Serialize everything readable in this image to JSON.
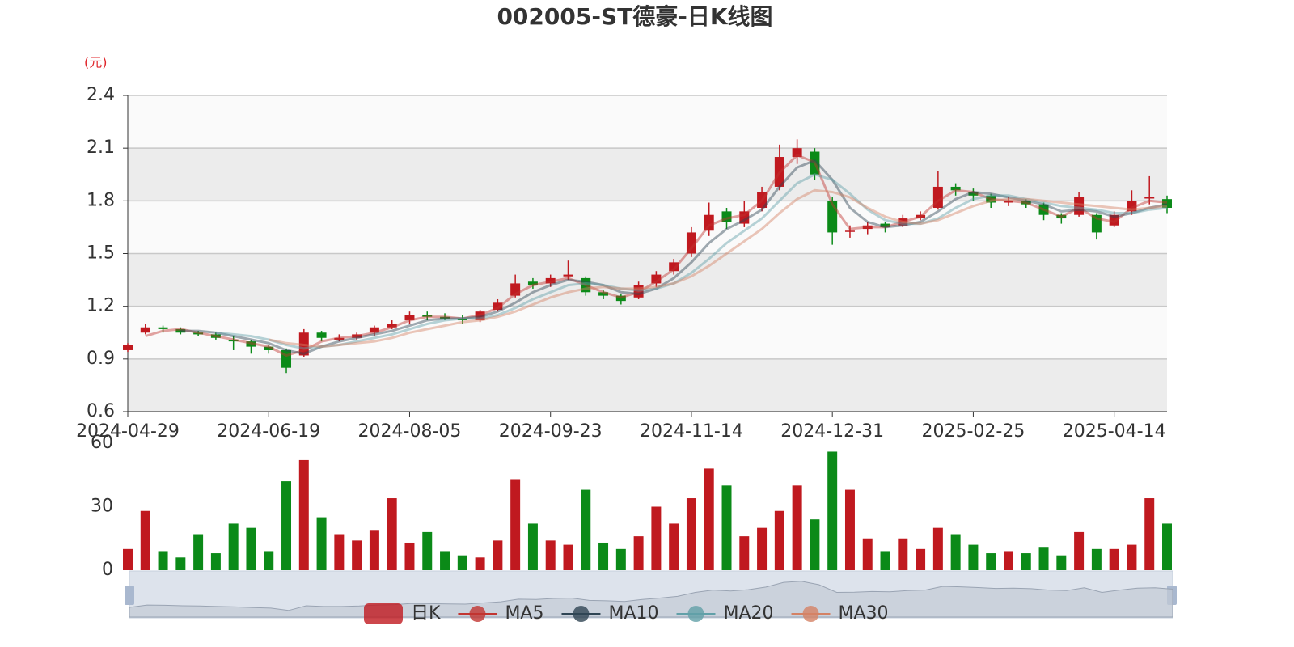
{
  "chart_data": {
    "type": "candlestick",
    "title": "002005-ST德豪-日K线图",
    "y_label": "(元)",
    "ylim": [
      0.6,
      2.4
    ],
    "yticks": [
      0.6,
      0.9,
      1.2,
      1.5,
      1.8,
      2.1,
      2.4
    ],
    "grid": true,
    "legend": "bottom",
    "categories": [
      "2024-04-29",
      null,
      null,
      null,
      null,
      null,
      null,
      null,
      "2024-06-19",
      null,
      null,
      null,
      null,
      null,
      null,
      null,
      "2024-08-05",
      null,
      null,
      null,
      null,
      null,
      null,
      null,
      "2024-09-23",
      null,
      null,
      null,
      null,
      null,
      null,
      null,
      "2024-11-14",
      null,
      null,
      null,
      null,
      null,
      null,
      null,
      "2024-12-31",
      null,
      null,
      null,
      null,
      null,
      null,
      null,
      "2025-02-25",
      null,
      null,
      null,
      null,
      null,
      null,
      null,
      "2025-04-14",
      null,
      null,
      null
    ],
    "series": [
      {
        "name": "日K",
        "type": "candlestick",
        "up_color": "#c0191f",
        "down_color": "#0b8a18",
        "open": [
          0.95,
          1.05,
          1.08,
          1.07,
          1.05,
          1.04,
          1.01,
          1.0,
          0.97,
          0.95,
          0.92,
          1.05,
          1.01,
          1.02,
          1.05,
          1.08,
          1.12,
          1.15,
          1.14,
          1.13,
          1.12,
          1.18,
          1.26,
          1.34,
          1.33,
          1.37,
          1.36,
          1.28,
          1.26,
          1.25,
          1.33,
          1.4,
          1.5,
          1.63,
          1.74,
          1.67,
          1.76,
          1.88,
          2.05,
          2.08,
          1.8,
          1.63,
          1.64,
          1.67,
          1.66,
          1.7,
          1.76,
          1.88,
          1.85,
          1.83,
          1.79,
          1.8,
          1.78,
          1.72,
          1.72,
          1.72,
          1.66,
          1.74,
          1.82,
          1.81
        ],
        "close": [
          0.98,
          1.08,
          1.07,
          1.05,
          1.04,
          1.02,
          1.0,
          0.97,
          0.95,
          0.85,
          1.05,
          1.02,
          1.02,
          1.04,
          1.08,
          1.1,
          1.15,
          1.14,
          1.13,
          1.12,
          1.17,
          1.22,
          1.33,
          1.32,
          1.36,
          1.38,
          1.28,
          1.26,
          1.23,
          1.32,
          1.38,
          1.45,
          1.62,
          1.72,
          1.68,
          1.74,
          1.85,
          2.05,
          2.1,
          1.95,
          1.62,
          1.63,
          1.66,
          1.65,
          1.7,
          1.72,
          1.88,
          1.86,
          1.83,
          1.79,
          1.8,
          1.78,
          1.72,
          1.7,
          1.82,
          1.62,
          1.72,
          1.8,
          1.82,
          1.76
        ],
        "high": [
          0.99,
          1.1,
          1.09,
          1.08,
          1.06,
          1.05,
          1.03,
          1.01,
          0.98,
          0.96,
          1.07,
          1.06,
          1.04,
          1.05,
          1.09,
          1.12,
          1.17,
          1.17,
          1.16,
          1.15,
          1.18,
          1.24,
          1.38,
          1.36,
          1.38,
          1.46,
          1.37,
          1.29,
          1.27,
          1.34,
          1.4,
          1.47,
          1.65,
          1.79,
          1.76,
          1.8,
          1.88,
          2.12,
          2.15,
          2.1,
          1.82,
          1.66,
          1.68,
          1.68,
          1.72,
          1.74,
          1.97,
          1.9,
          1.87,
          1.84,
          1.82,
          1.81,
          1.79,
          1.73,
          1.85,
          1.73,
          1.74,
          1.86,
          1.94,
          1.83
        ],
        "low": [
          0.94,
          1.04,
          1.05,
          1.04,
          1.03,
          1.01,
          0.95,
          0.93,
          0.93,
          0.82,
          0.91,
          1.0,
          1.0,
          1.01,
          1.03,
          1.07,
          1.1,
          1.12,
          1.12,
          1.1,
          1.11,
          1.17,
          1.25,
          1.3,
          1.31,
          1.35,
          1.26,
          1.24,
          1.21,
          1.24,
          1.31,
          1.38,
          1.48,
          1.6,
          1.64,
          1.65,
          1.74,
          1.86,
          2.01,
          1.92,
          1.55,
          1.59,
          1.61,
          1.62,
          1.65,
          1.69,
          1.75,
          1.83,
          1.8,
          1.76,
          1.77,
          1.76,
          1.69,
          1.67,
          1.71,
          1.58,
          1.65,
          1.72,
          1.78,
          1.73
        ]
      },
      {
        "name": "MA5",
        "type": "line",
        "color": "#c23531",
        "values": [
          null,
          1.03,
          1.06,
          1.07,
          1.05,
          1.03,
          1.01,
          0.99,
          0.97,
          0.92,
          0.95,
          1.0,
          1.02,
          1.03,
          1.05,
          1.08,
          1.12,
          1.14,
          1.14,
          1.13,
          1.15,
          1.19,
          1.27,
          1.32,
          1.34,
          1.36,
          1.32,
          1.28,
          1.25,
          1.28,
          1.34,
          1.41,
          1.53,
          1.66,
          1.7,
          1.72,
          1.8,
          1.96,
          2.06,
          2.02,
          1.78,
          1.64,
          1.65,
          1.65,
          1.68,
          1.71,
          1.8,
          1.86,
          1.85,
          1.81,
          1.8,
          1.79,
          1.75,
          1.71,
          1.76,
          1.7,
          1.68,
          1.76,
          1.8,
          1.79
        ]
      },
      {
        "name": "MA10",
        "type": "line",
        "color": "#2f4554",
        "values": [
          null,
          null,
          null,
          1.06,
          1.06,
          1.05,
          1.03,
          1.01,
          0.99,
          0.95,
          0.93,
          0.97,
          1.0,
          1.02,
          1.04,
          1.06,
          1.09,
          1.12,
          1.13,
          1.13,
          1.14,
          1.17,
          1.22,
          1.28,
          1.32,
          1.35,
          1.34,
          1.32,
          1.28,
          1.27,
          1.3,
          1.36,
          1.45,
          1.56,
          1.64,
          1.69,
          1.75,
          1.88,
          1.99,
          2.03,
          1.92,
          1.76,
          1.68,
          1.65,
          1.66,
          1.68,
          1.74,
          1.81,
          1.85,
          1.84,
          1.82,
          1.8,
          1.78,
          1.74,
          1.75,
          1.74,
          1.71,
          1.73,
          1.76,
          1.78
        ]
      },
      {
        "name": "MA20",
        "type": "line",
        "color": "#61a0a8",
        "values": [
          null,
          null,
          null,
          null,
          null,
          1.05,
          1.04,
          1.03,
          1.01,
          0.98,
          0.96,
          0.97,
          0.98,
          1.0,
          1.02,
          1.04,
          1.07,
          1.1,
          1.12,
          1.13,
          1.13,
          1.15,
          1.19,
          1.24,
          1.28,
          1.32,
          1.33,
          1.32,
          1.3,
          1.29,
          1.3,
          1.33,
          1.39,
          1.47,
          1.56,
          1.63,
          1.7,
          1.8,
          1.9,
          1.95,
          1.92,
          1.84,
          1.75,
          1.69,
          1.67,
          1.67,
          1.7,
          1.76,
          1.81,
          1.83,
          1.83,
          1.81,
          1.79,
          1.77,
          1.76,
          1.75,
          1.73,
          1.73,
          1.75,
          1.76
        ]
      },
      {
        "name": "MA30",
        "type": "line",
        "color": "#d48265",
        "values": [
          null,
          null,
          null,
          null,
          null,
          null,
          null,
          null,
          1.01,
          0.99,
          0.98,
          0.97,
          0.98,
          0.99,
          1.0,
          1.02,
          1.05,
          1.07,
          1.09,
          1.11,
          1.12,
          1.14,
          1.17,
          1.21,
          1.25,
          1.28,
          1.3,
          1.31,
          1.3,
          1.3,
          1.31,
          1.33,
          1.37,
          1.43,
          1.5,
          1.57,
          1.64,
          1.73,
          1.81,
          1.86,
          1.85,
          1.82,
          1.76,
          1.71,
          1.68,
          1.67,
          1.69,
          1.73,
          1.77,
          1.8,
          1.81,
          1.81,
          1.8,
          1.79,
          1.78,
          1.77,
          1.76,
          1.75,
          1.76,
          1.77
        ]
      }
    ],
    "volume": {
      "ylim": [
        0,
        60
      ],
      "yticks": [
        0,
        30,
        60
      ],
      "values": [
        10,
        28,
        9,
        6,
        17,
        8,
        22,
        20,
        9,
        42,
        52,
        25,
        17,
        14,
        19,
        34,
        13,
        18,
        9,
        7,
        6,
        14,
        43,
        22,
        14,
        12,
        38,
        13,
        10,
        16,
        30,
        22,
        34,
        48,
        40,
        16,
        20,
        28,
        40,
        24,
        56,
        38,
        15,
        9,
        15,
        10,
        20,
        17,
        12,
        8,
        9,
        8,
        11,
        7,
        18,
        10,
        10,
        12,
        34,
        22
      ]
    }
  }
}
